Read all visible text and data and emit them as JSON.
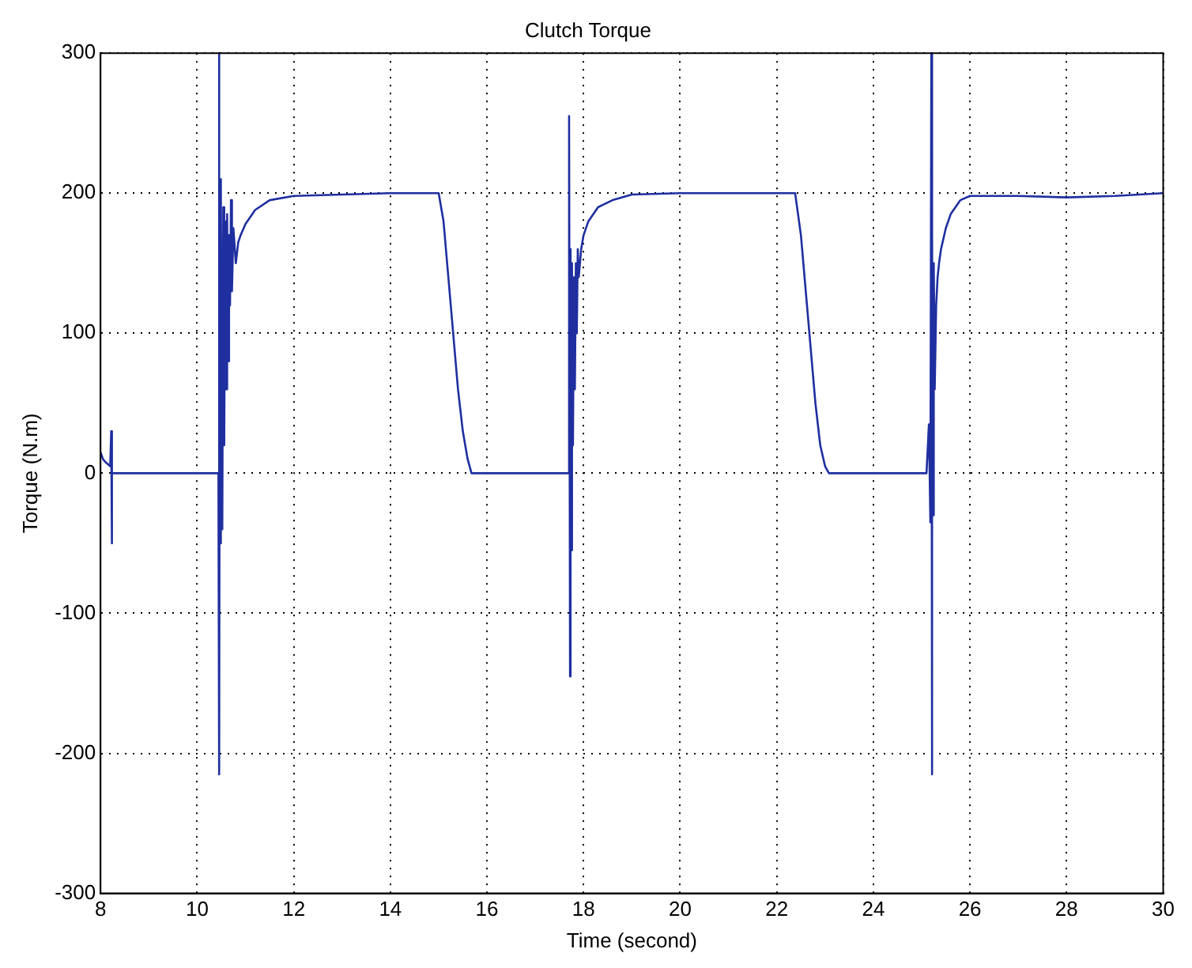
{
  "chart_data": {
    "type": "line",
    "title": "Clutch Torque",
    "xlabel": "Time (second)",
    "ylabel": "Torque (N.m)",
    "xlim": [
      8,
      30
    ],
    "xticks": [
      8,
      10,
      12,
      14,
      16,
      18,
      20,
      22,
      24,
      26,
      28,
      30
    ],
    "ylim": [
      -300,
      300
    ],
    "yticks": [
      -300,
      -200,
      -100,
      0,
      100,
      200,
      300
    ],
    "grid": true,
    "legend": false,
    "marker": "none",
    "line_style": "solid",
    "series": [
      {
        "color": "#1f2fa0",
        "x": [
          8,
          8.05,
          8.1,
          8.2,
          8.22,
          8.23,
          8.24,
          8.26,
          9,
          10,
          10.42,
          10.44,
          10.45,
          10.46,
          10.47,
          10.48,
          10.5,
          10.52,
          10.54,
          10.56,
          10.58,
          10.6,
          10.62,
          10.64,
          10.66,
          10.68,
          10.7,
          10.72,
          10.75,
          10.8,
          10.85,
          10.9,
          11,
          11.2,
          11.5,
          12,
          13,
          14,
          15,
          15.1,
          15.2,
          15.3,
          15.4,
          15.5,
          15.6,
          15.68,
          16,
          17,
          17.68,
          17.7,
          17.72,
          17.73,
          17.74,
          17.76,
          17.78,
          17.8,
          17.82,
          17.84,
          17.86,
          17.88,
          17.9,
          17.95,
          18,
          18.1,
          18.3,
          18.6,
          19,
          20,
          21,
          22.38,
          22.5,
          22.6,
          22.7,
          22.8,
          22.9,
          23,
          23.08,
          24,
          25.1,
          25.15,
          25.18,
          25.2,
          25.21,
          25.22,
          25.23,
          25.25,
          25.27,
          25.3,
          25.33,
          25.36,
          25.4,
          25.5,
          25.6,
          25.8,
          26,
          27,
          28,
          29,
          30
        ],
        "values": [
          15,
          10,
          8,
          5,
          30,
          -50,
          0,
          0,
          0,
          0,
          0,
          0,
          300,
          -215,
          210,
          -50,
          200,
          -40,
          190,
          20,
          180,
          60,
          185,
          80,
          170,
          120,
          195,
          130,
          175,
          150,
          165,
          170,
          178,
          188,
          195,
          198,
          199,
          200,
          200,
          180,
          140,
          100,
          60,
          30,
          10,
          0,
          0,
          0,
          0,
          255,
          -145,
          160,
          -55,
          150,
          20,
          140,
          60,
          150,
          100,
          160,
          140,
          160,
          170,
          180,
          190,
          195,
          199,
          200,
          200,
          200,
          170,
          130,
          90,
          50,
          20,
          5,
          0,
          0,
          0,
          35,
          -35,
          300,
          -215,
          175,
          -30,
          150,
          60,
          120,
          140,
          150,
          160,
          175,
          185,
          195,
          198,
          198,
          197,
          198,
          200
        ]
      }
    ]
  }
}
